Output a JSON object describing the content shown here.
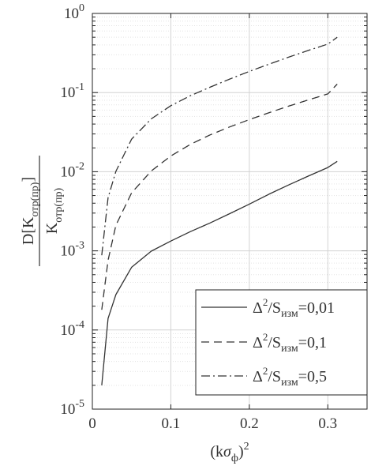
{
  "chart_data": {
    "type": "line",
    "x_scale": "linear",
    "y_scale": "log",
    "xlim": [
      0,
      0.35
    ],
    "ylim": [
      1e-05,
      1
    ],
    "x_ticks": [
      {
        "value": 0,
        "label": "0"
      },
      {
        "value": 0.1,
        "label": "0.1"
      },
      {
        "value": 0.2,
        "label": "0.2"
      },
      {
        "value": 0.3,
        "label": "0.3"
      }
    ],
    "y_ticks": [
      {
        "value": 1e-05,
        "base": "10",
        "exp": "-5"
      },
      {
        "value": 0.0001,
        "base": "10",
        "exp": "-4"
      },
      {
        "value": 0.001,
        "base": "10",
        "exp": "-3"
      },
      {
        "value": 0.01,
        "base": "10",
        "exp": "-2"
      },
      {
        "value": 0.1,
        "base": "10",
        "exp": "-1"
      },
      {
        "value": 1,
        "base": "10",
        "exp": "0"
      }
    ],
    "grid": true,
    "legend_position": "bottom-right",
    "xlabel": {
      "open": "(k",
      "sigma": "σ",
      "sub": "ф",
      "close": ")",
      "sup": "2"
    },
    "ylabel": {
      "numerator_main": "D[K",
      "numerator_sub": "отр(пр)",
      "numerator_close": "]",
      "denominator_main": "K",
      "denominator_sub": "отр(пр)"
    },
    "series": [
      {
        "legend": {
          "delta": "Δ",
          "pow": "2",
          "slash": "/S",
          "sub": "изм",
          "value": "=0,01"
        },
        "style": "solid",
        "x": [
          0.012,
          0.02,
          0.03,
          0.05,
          0.075,
          0.1,
          0.125,
          0.15,
          0.175,
          0.2,
          0.225,
          0.25,
          0.275,
          0.3,
          0.312
        ],
        "y": [
          2e-05,
          0.00014,
          0.00028,
          0.00062,
          0.00099,
          0.00133,
          0.00175,
          0.00225,
          0.00295,
          0.0039,
          0.0052,
          0.0068,
          0.0088,
          0.0113,
          0.0135
        ]
      },
      {
        "legend": {
          "delta": "Δ",
          "pow": "2",
          "slash": "/S",
          "sub": "изм",
          "value": "=0,1"
        },
        "style": "dashed",
        "x": [
          0.012,
          0.02,
          0.03,
          0.05,
          0.075,
          0.1,
          0.125,
          0.15,
          0.175,
          0.2,
          0.225,
          0.25,
          0.275,
          0.3,
          0.312
        ],
        "y": [
          0.00018,
          0.00076,
          0.0021,
          0.0054,
          0.0102,
          0.0158,
          0.0222,
          0.0292,
          0.0368,
          0.0456,
          0.0556,
          0.0673,
          0.0806,
          0.0962,
          0.128
        ]
      },
      {
        "legend": {
          "delta": "Δ",
          "pow": "2",
          "slash": "/S",
          "sub": "изм",
          "value": "=0,5"
        },
        "style": "dashdot",
        "x": [
          0.012,
          0.02,
          0.03,
          0.05,
          0.075,
          0.1,
          0.125,
          0.15,
          0.175,
          0.2,
          0.225,
          0.25,
          0.275,
          0.3,
          0.312
        ],
        "y": [
          0.00088,
          0.0047,
          0.0101,
          0.0258,
          0.0465,
          0.0683,
          0.0914,
          0.117,
          0.148,
          0.185,
          0.228,
          0.28,
          0.34,
          0.41,
          0.5
        ]
      }
    ]
  }
}
